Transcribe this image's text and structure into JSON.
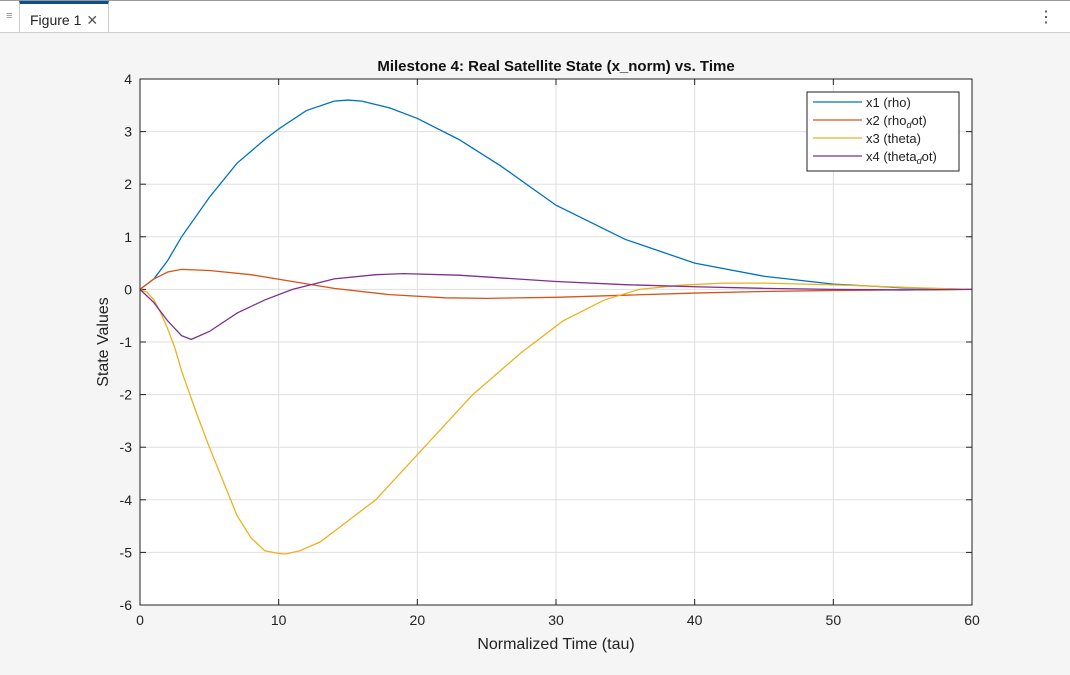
{
  "window": {
    "tab_label": "Figure 1",
    "menu_icon": "hamburger-icon",
    "close_icon": "close-icon",
    "more_icon": "kebab-icon"
  },
  "chart_data": {
    "type": "line",
    "title": "Milestone 4: Real Satellite State (x_norm) vs. Time",
    "xlabel": "Normalized Time (tau)",
    "ylabel": "State Values",
    "xlim": [
      0,
      60
    ],
    "ylim": [
      -6,
      4
    ],
    "xticks": [
      0,
      10,
      20,
      30,
      40,
      50,
      60
    ],
    "yticks": [
      -6,
      -5,
      -4,
      -3,
      -2,
      -1,
      0,
      1,
      2,
      3,
      4
    ],
    "grid": true,
    "legend_placement": "top-right",
    "series": [
      {
        "name": "x1 (rho)",
        "color": "#0072BD",
        "x": [
          0,
          1,
          2,
          3,
          5,
          7,
          9,
          10,
          12,
          14,
          15,
          16,
          18,
          20,
          23,
          26,
          30,
          35,
          40,
          45,
          50,
          55,
          60
        ],
        "y": [
          0,
          0.2,
          0.55,
          1.0,
          1.75,
          2.4,
          2.85,
          3.05,
          3.4,
          3.58,
          3.6,
          3.58,
          3.45,
          3.25,
          2.85,
          2.35,
          1.6,
          0.95,
          0.5,
          0.25,
          0.1,
          0.03,
          0.0
        ]
      },
      {
        "name": "x2  (rho",
        "sub": "d",
        "suffix": "ot)",
        "color": "#D95319",
        "x": [
          0,
          1,
          2,
          3,
          5,
          8,
          11,
          14,
          18,
          22,
          25,
          30,
          35,
          40,
          45,
          50,
          55,
          60
        ],
        "y": [
          0,
          0.2,
          0.33,
          0.38,
          0.36,
          0.28,
          0.15,
          0.02,
          -0.1,
          -0.16,
          -0.17,
          -0.15,
          -0.11,
          -0.07,
          -0.04,
          -0.02,
          -0.01,
          0
        ]
      },
      {
        "name": "x3 (theta)",
        "color": "#EDB120",
        "x": [
          0,
          0.5,
          1,
          1.5,
          2,
          2.5,
          3,
          4,
          5,
          6,
          7,
          8,
          9,
          10,
          10.5,
          11.5,
          13,
          14.5,
          17,
          20.5,
          24,
          27.5,
          30.5,
          33.5,
          36,
          39,
          42,
          45,
          48,
          52,
          56,
          60
        ],
        "y": [
          0,
          -0.05,
          -0.2,
          -0.45,
          -0.75,
          -1.1,
          -1.55,
          -2.3,
          -3.0,
          -3.65,
          -4.3,
          -4.72,
          -4.97,
          -5.02,
          -5.03,
          -4.97,
          -4.8,
          -4.5,
          -4.0,
          -3.0,
          -2.0,
          -1.2,
          -0.6,
          -0.2,
          0.0,
          0.08,
          0.12,
          0.12,
          0.1,
          0.07,
          0.03,
          0
        ]
      },
      {
        "name": "x4  (theta",
        "sub": "d",
        "suffix": "ot)",
        "color": "#7E2F8E",
        "x": [
          0,
          1,
          2,
          3,
          3.7,
          5,
          7,
          9,
          11,
          14,
          17,
          19,
          23,
          30,
          35,
          40,
          45,
          50,
          55,
          60
        ],
        "y": [
          0,
          -0.25,
          -0.6,
          -0.88,
          -0.95,
          -0.8,
          -0.45,
          -0.2,
          0,
          0.2,
          0.28,
          0.3,
          0.27,
          0.15,
          0.09,
          0.05,
          0.02,
          0,
          -0.01,
          0
        ]
      }
    ]
  }
}
